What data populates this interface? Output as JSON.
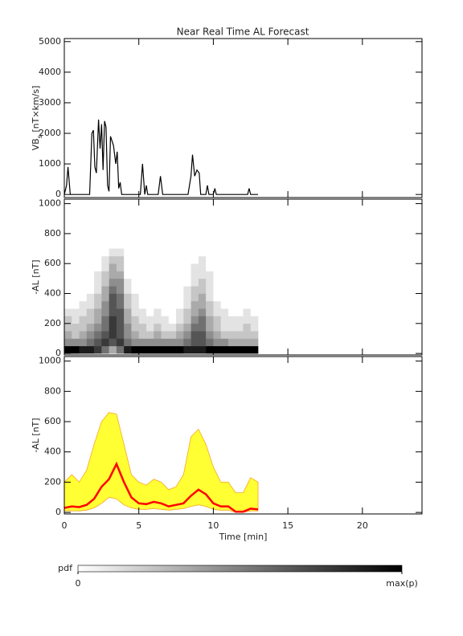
{
  "chart_data": [
    {
      "type": "line",
      "title": "Near Real Time AL Forecast",
      "ylabel": [
        "VB",
        "s",
        " [nT×km/s]"
      ],
      "xlim": [
        0,
        24
      ],
      "xticks": [
        0,
        5,
        10,
        15,
        20
      ],
      "ylim": [
        -100,
        5100
      ],
      "yticks": [
        0,
        1000,
        2000,
        3000,
        4000,
        5000
      ],
      "color": "#000000",
      "x": [
        0,
        0.15,
        0.25,
        0.4,
        1.7,
        1.85,
        1.95,
        2.05,
        2.15,
        2.3,
        2.4,
        2.5,
        2.6,
        2.7,
        2.8,
        2.9,
        3.0,
        3.1,
        3.3,
        3.45,
        3.55,
        3.65,
        3.75,
        3.85,
        5.1,
        5.25,
        5.4,
        5.5,
        5.6,
        6.3,
        6.45,
        6.6,
        8.3,
        8.5,
        8.6,
        8.75,
        8.9,
        9.05,
        9.15,
        9.5,
        9.6,
        9.7,
        10.0,
        10.1,
        10.2,
        12.3,
        12.4,
        12.5,
        13.0
      ],
      "values": [
        0,
        300,
        900,
        0,
        0,
        2000,
        2100,
        900,
        700,
        2450,
        1500,
        2300,
        800,
        2400,
        2200,
        300,
        100,
        1900,
        1600,
        1000,
        1400,
        200,
        400,
        0,
        0,
        1000,
        0,
        300,
        0,
        0,
        600,
        0,
        0,
        600,
        1300,
        600,
        800,
        700,
        0,
        0,
        300,
        0,
        0,
        200,
        0,
        0,
        200,
        0,
        0
      ]
    },
    {
      "type": "heatmap",
      "ylabel": "-AL [nT]",
      "xlim": [
        0,
        24
      ],
      "xticks": [
        0,
        5,
        10,
        15,
        20
      ],
      "ylim": [
        -10,
        1030
      ],
      "yticks": [
        0,
        200,
        400,
        600,
        800,
        1000
      ],
      "xbins": [
        0,
        0.5,
        1,
        1.5,
        2,
        2.5,
        3,
        3.5,
        4,
        4.5,
        5,
        5.5,
        6,
        6.5,
        7,
        7.5,
        8,
        8.5,
        9,
        9.5,
        10,
        10.5,
        11,
        11.5,
        12,
        12.5,
        13
      ],
      "ybins": [
        0,
        50,
        100,
        150,
        200,
        250,
        300,
        350,
        400,
        450,
        500,
        550,
        600,
        650,
        700
      ],
      "zlim": [
        0,
        9
      ],
      "z": [
        [
          9,
          9,
          8,
          8,
          7,
          5,
          3,
          5,
          8,
          9,
          9,
          9,
          9,
          9,
          9,
          9,
          8,
          8,
          8,
          9,
          9,
          9,
          9,
          9,
          9,
          9
        ],
        [
          4,
          4,
          4,
          5,
          6,
          7,
          6,
          7,
          5,
          4,
          4,
          4,
          4,
          4,
          4,
          4,
          5,
          6,
          6,
          5,
          4,
          4,
          3,
          3,
          3,
          3
        ],
        [
          3,
          2,
          3,
          4,
          5,
          6,
          7,
          6,
          4,
          3,
          2,
          2,
          3,
          2,
          2,
          3,
          4,
          6,
          6,
          4,
          3,
          2,
          2,
          2,
          2,
          2
        ],
        [
          2,
          2,
          2,
          3,
          4,
          5,
          7,
          6,
          4,
          2,
          2,
          1,
          2,
          1,
          1,
          2,
          3,
          5,
          5,
          3,
          2,
          1,
          1,
          1,
          2,
          1
        ],
        [
          2,
          1,
          2,
          2,
          3,
          5,
          7,
          6,
          3,
          2,
          1,
          1,
          1,
          1,
          0,
          1,
          2,
          4,
          5,
          3,
          2,
          1,
          1,
          1,
          1,
          1
        ],
        [
          1,
          1,
          1,
          2,
          3,
          4,
          6,
          6,
          3,
          1,
          1,
          0,
          1,
          0,
          0,
          1,
          2,
          3,
          4,
          2,
          1,
          1,
          0,
          0,
          1,
          0
        ],
        [
          0,
          0,
          1,
          1,
          2,
          4,
          6,
          5,
          2,
          1,
          0,
          0,
          0,
          0,
          0,
          0,
          1,
          3,
          3,
          2,
          1,
          0,
          0,
          0,
          0,
          0
        ],
        [
          0,
          0,
          0,
          1,
          2,
          3,
          6,
          5,
          2,
          1,
          0,
          0,
          0,
          0,
          0,
          0,
          1,
          2,
          3,
          1,
          0,
          0,
          0,
          0,
          0,
          0
        ],
        [
          0,
          0,
          0,
          0,
          1,
          3,
          5,
          4,
          1,
          0,
          0,
          0,
          0,
          0,
          0,
          0,
          1,
          2,
          2,
          1,
          0,
          0,
          0,
          0,
          0,
          0
        ],
        [
          0,
          0,
          0,
          0,
          1,
          2,
          4,
          4,
          1,
          0,
          0,
          0,
          0,
          0,
          0,
          0,
          0,
          1,
          2,
          1,
          0,
          0,
          0,
          0,
          0,
          0
        ],
        [
          0,
          0,
          0,
          0,
          1,
          2,
          3,
          3,
          0,
          0,
          0,
          0,
          0,
          0,
          0,
          0,
          0,
          1,
          1,
          1,
          0,
          0,
          0,
          0,
          0,
          0
        ],
        [
          0,
          0,
          0,
          0,
          0,
          1,
          3,
          2,
          0,
          0,
          0,
          0,
          0,
          0,
          0,
          0,
          0,
          1,
          1,
          0,
          0,
          0,
          0,
          0,
          0,
          0
        ],
        [
          0,
          0,
          0,
          0,
          0,
          1,
          2,
          2,
          0,
          0,
          0,
          0,
          0,
          0,
          0,
          0,
          0,
          0,
          1,
          0,
          0,
          0,
          0,
          0,
          0,
          0
        ],
        [
          0,
          0,
          0,
          0,
          0,
          0,
          1,
          1,
          0,
          0,
          0,
          0,
          0,
          0,
          0,
          0,
          0,
          0,
          0,
          0,
          0,
          0,
          0,
          0,
          0,
          0
        ]
      ],
      "colorbar": {
        "label": "pdf",
        "ticks": [
          0,
          {
            "value": 9,
            "label": "max(p)"
          }
        ]
      }
    },
    {
      "type": "band_line",
      "ylabel": "-AL [nT]",
      "xlabel": "Time [min]",
      "xlim": [
        0,
        24
      ],
      "xticks": [
        0,
        5,
        10,
        15,
        20
      ],
      "ylim": [
        -10,
        1030
      ],
      "yticks": [
        0,
        200,
        400,
        600,
        800,
        1000
      ],
      "x": [
        0,
        0.5,
        1,
        1.5,
        2,
        2.5,
        3,
        3.5,
        4,
        4.5,
        5,
        5.5,
        6,
        6.5,
        7,
        7.5,
        8,
        8.5,
        9,
        9.5,
        10,
        10.5,
        11,
        11.5,
        12,
        12.5,
        13
      ],
      "band": {
        "color": "#ffff33",
        "edge_color": "#f5a623",
        "lower": [
          10,
          10,
          10,
          15,
          30,
          60,
          100,
          90,
          50,
          30,
          20,
          20,
          25,
          20,
          15,
          20,
          25,
          40,
          50,
          40,
          20,
          15,
          15,
          0,
          0,
          10,
          10
        ],
        "upper": [
          200,
          250,
          200,
          280,
          450,
          600,
          660,
          650,
          450,
          250,
          200,
          180,
          220,
          200,
          150,
          170,
          250,
          500,
          550,
          450,
          300,
          200,
          200,
          130,
          130,
          230,
          200
        ]
      },
      "series": [
        {
          "color": "#ff0000",
          "values": [
            30,
            40,
            35,
            50,
            90,
            170,
            220,
            320,
            200,
            100,
            60,
            55,
            70,
            60,
            40,
            50,
            60,
            110,
            150,
            120,
            60,
            40,
            40,
            5,
            5,
            25,
            20
          ]
        }
      ]
    }
  ]
}
